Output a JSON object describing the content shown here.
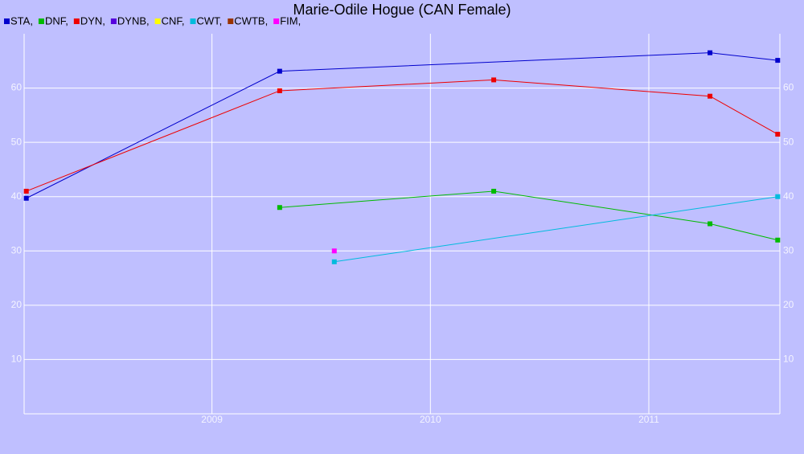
{
  "chart_data": {
    "type": "line",
    "title": "Marie-Odile Hogue (CAN Female)",
    "series": [
      {
        "name": "STA,",
        "color": "#0000cc",
        "x": [
          2008.15,
          2009.31,
          2011.28,
          2011.59
        ],
        "values": [
          39.7,
          63.1,
          66.5,
          65.1
        ]
      },
      {
        "name": "DNF,",
        "color": "#00bb00",
        "x": [
          2009.31,
          2010.29,
          2011.28,
          2011.59
        ],
        "values": [
          38,
          41,
          35,
          32
        ]
      },
      {
        "name": "DYN,",
        "color": "#ee0000",
        "x": [
          2008.15,
          2009.31,
          2010.29,
          2011.28,
          2011.59
        ],
        "values": [
          41,
          59.5,
          61.5,
          58.5,
          51.5
        ]
      },
      {
        "name": "DYNB,",
        "color": "#5500dd",
        "x": [],
        "values": []
      },
      {
        "name": "CNF,",
        "color": "#ffff00",
        "x": [],
        "values": []
      },
      {
        "name": "CWT,",
        "color": "#00bbdd",
        "x": [
          2009.56,
          2011.59
        ],
        "values": [
          28,
          40
        ]
      },
      {
        "name": "CWTB,",
        "color": "#993300",
        "x": [],
        "values": []
      },
      {
        "name": "FIM,",
        "color": "#ff00ff",
        "x": [
          2009.56
        ],
        "values": [
          30
        ]
      }
    ],
    "xlim": [
      2008.14,
      2011.6
    ],
    "xticks": [
      2009,
      2010,
      2011
    ],
    "ylim": [
      0,
      70
    ],
    "yticks": [
      10,
      20,
      30,
      40,
      50,
      60
    ],
    "grid": true
  }
}
